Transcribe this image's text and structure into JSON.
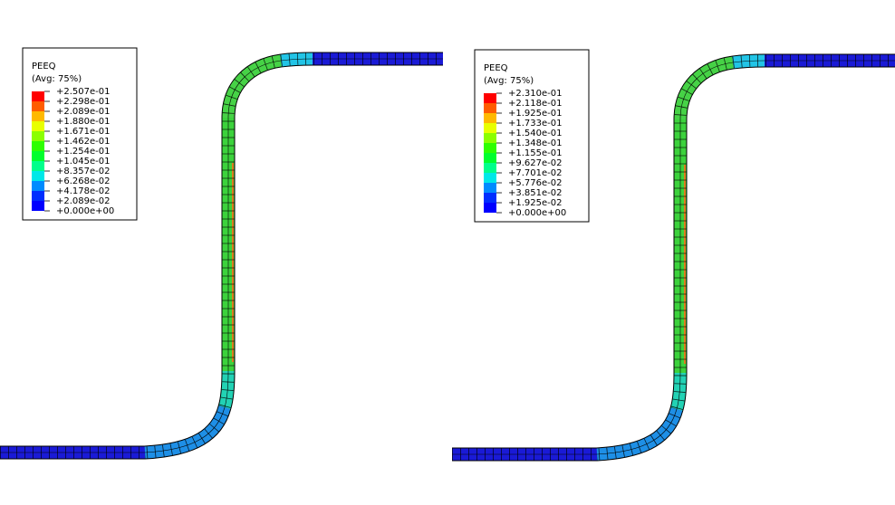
{
  "panels": [
    {
      "legend": {
        "title": "PEEQ",
        "subtitle": "(Avg: 75%)",
        "labels": [
          "+2.507e-01",
          "+2.298e-01",
          "+2.089e-01",
          "+1.880e-01",
          "+1.671e-01",
          "+1.462e-01",
          "+1.254e-01",
          "+1.045e-01",
          "+8.357e-02",
          "+6.268e-02",
          "+4.178e-02",
          "+2.089e-02",
          "+0.000e+00"
        ]
      }
    },
    {
      "legend": {
        "title": "PEEQ",
        "subtitle": "(Avg: 75%)",
        "labels": [
          "+2.310e-01",
          "+2.118e-01",
          "+1.925e-01",
          "+1.733e-01",
          "+1.540e-01",
          "+1.348e-01",
          "+1.155e-01",
          "+9.627e-02",
          "+7.701e-02",
          "+5.776e-02",
          "+3.851e-02",
          "+1.925e-02",
          "+0.000e+00"
        ]
      }
    }
  ]
}
